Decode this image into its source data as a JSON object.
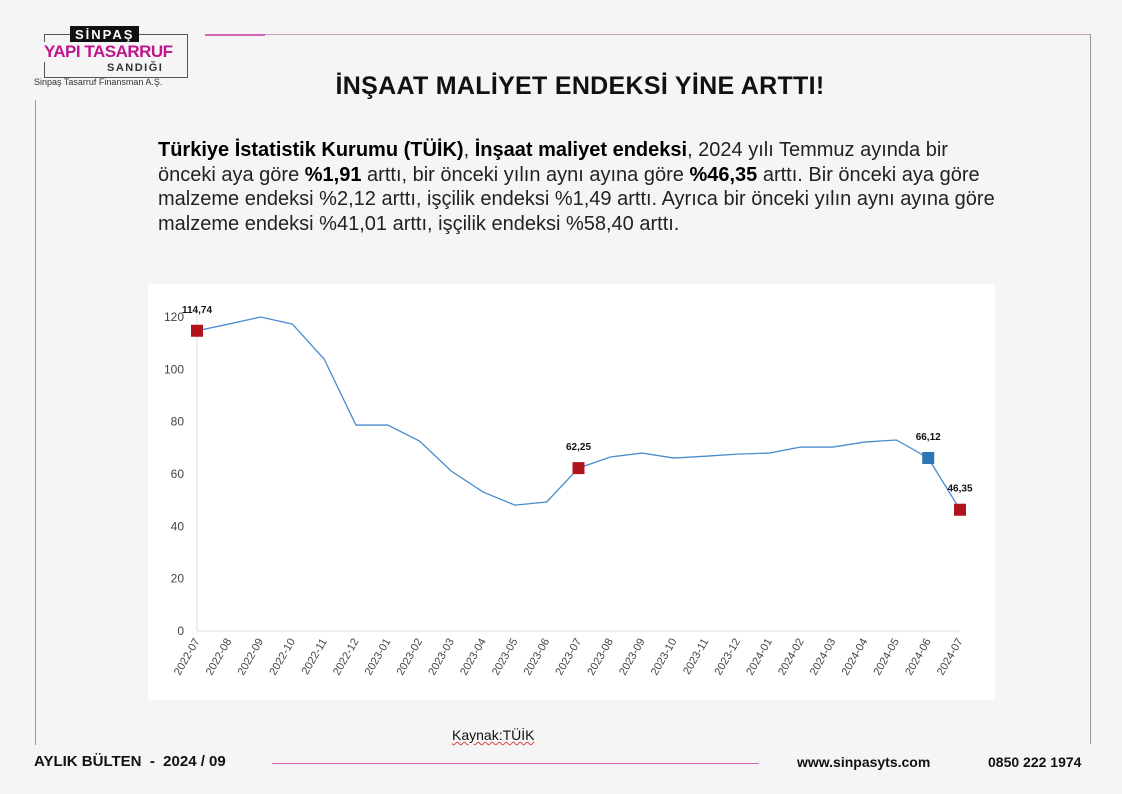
{
  "logo": {
    "top": "SİNPAŞ",
    "middle": "YAPI TASARRUF",
    "bottom": "SANDIĞI",
    "subtitle": "Sinpaş Tasarruf Finansman A.Ş."
  },
  "title": "İNŞAAT MALİYET ENDEKSİ YİNE ARTTI!",
  "paragraph": {
    "p1_bold": "Türkiye İstatistik Kurumu (TÜİK)",
    "p2": ", ",
    "p3_bold": "İnşaat maliyet endeksi",
    "p4": ", 2024 yılı Temmuz ayında bir önceki aya göre ",
    "p5_bold": "%1,91",
    "p6": " arttı, bir önceki yılın aynı ayına göre ",
    "p7_bold": "%46,35",
    "p8": " arttı. Bir önceki aya göre malzeme endeksi %2,12 arttı, işçilik endeksi %1,49 arttı. Ayrıca bir önceki yılın aynı ayına göre malzeme endeksi %41,01 arttı, işçilik endeksi %58,40 arttı."
  },
  "chart_data": {
    "type": "line",
    "title": "",
    "xlabel": "",
    "ylabel": "",
    "ylim": [
      0,
      120
    ],
    "yticks": [
      "0",
      "20",
      "40",
      "60",
      "80",
      "100",
      "120"
    ],
    "grid": false,
    "line_color": "#4a8ccc",
    "categories": [
      "2022-07",
      "2022-08",
      "2022-09",
      "2022-10",
      "2022-11",
      "2022-12",
      "2023-01",
      "2023-02",
      "2023-03",
      "2023-04",
      "2023-05",
      "2023-06",
      "2023-07",
      "2023-08",
      "2023-09",
      "2023-10",
      "2023-11",
      "2023-12",
      "2024-01",
      "2024-02",
      "2024-03",
      "2024-04",
      "2024-05",
      "2024-06",
      "2024-07"
    ],
    "values": [
      114.74,
      117.3,
      120.0,
      117.3,
      103.9,
      78.7,
      78.7,
      72.6,
      61.1,
      53.1,
      48.1,
      49.3,
      62.25,
      66.5,
      68.0,
      66.1,
      66.8,
      67.6,
      68.0,
      70.3,
      70.3,
      72.2,
      73.0,
      66.12,
      46.35
    ],
    "highlights": [
      {
        "index": 0,
        "label": "114,74",
        "color": "#b0141c"
      },
      {
        "index": 12,
        "label": "62,25",
        "color": "#b0141c"
      },
      {
        "index": 23,
        "label": "66,12",
        "color": "#2e75b6"
      },
      {
        "index": 24,
        "label": "46,35",
        "color": "#b0141c"
      }
    ]
  },
  "source": "Kaynak:TÜİK",
  "footer": {
    "bulletin": "AYLIK BÜLTEN  -  2024 / 09",
    "website": "www.sinpasyts.com",
    "phone": "0850 222 1974"
  }
}
